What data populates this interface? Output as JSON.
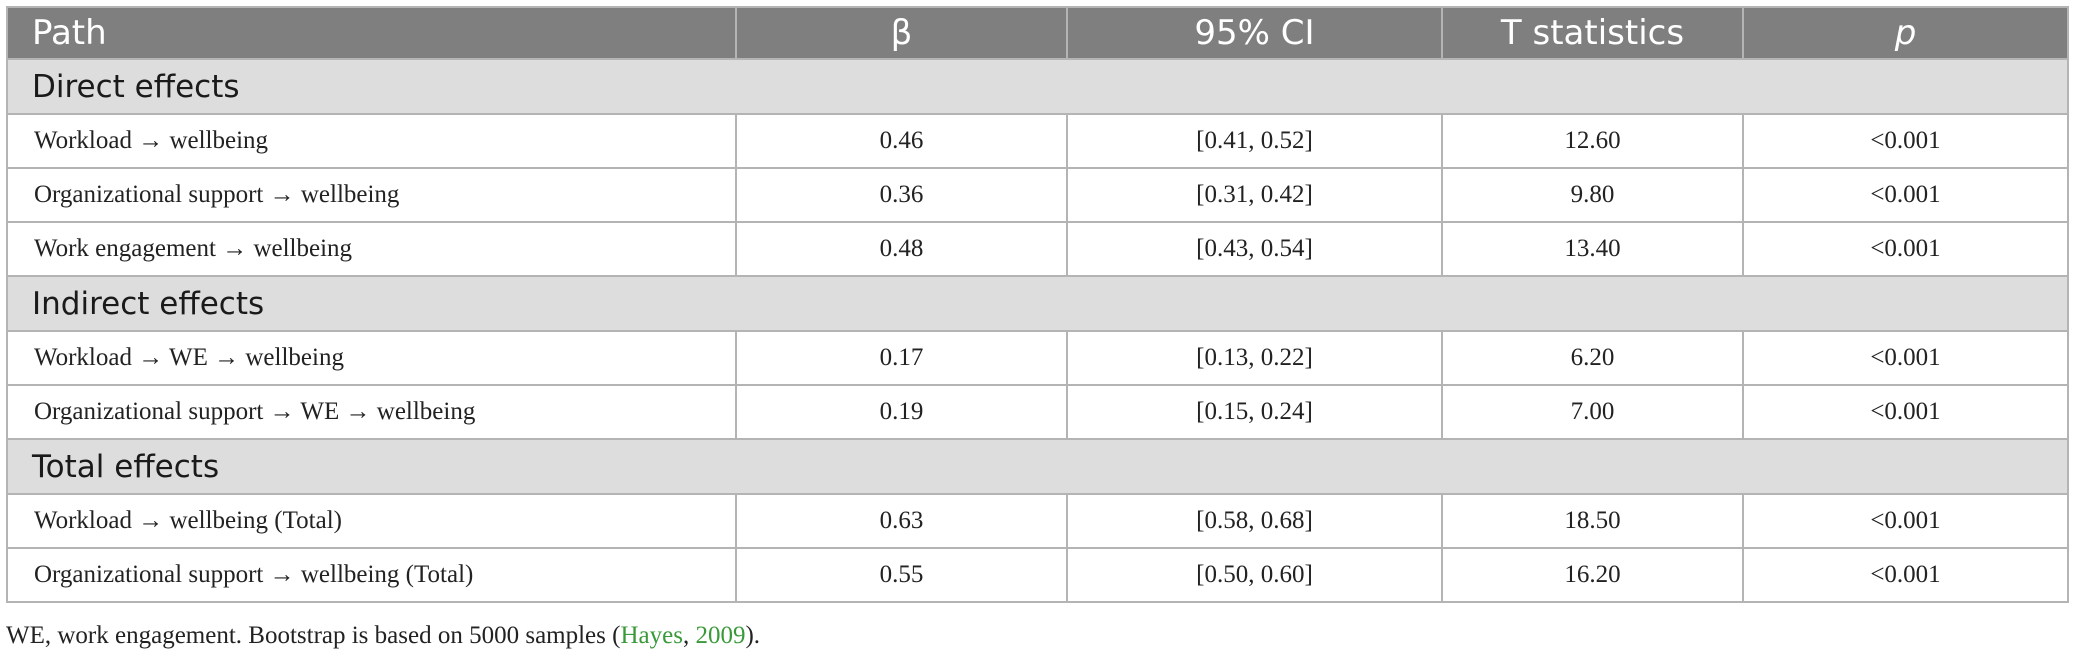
{
  "table": {
    "headers": {
      "path": "Path",
      "beta": "β",
      "ci": "95% CI",
      "t": "T statistics",
      "p": "p"
    },
    "sections": [
      {
        "title": "Direct effects",
        "rows": [
          {
            "path": "Workload → wellbeing",
            "beta": "0.46",
            "ci": "[0.41, 0.52]",
            "t": "12.60",
            "p": "<0.001"
          },
          {
            "path": "Organizational support → wellbeing",
            "beta": "0.36",
            "ci": "[0.31, 0.42]",
            "t": "9.80",
            "p": "<0.001"
          },
          {
            "path": "Work engagement → wellbeing",
            "beta": "0.48",
            "ci": "[0.43, 0.54]",
            "t": "13.40",
            "p": "<0.001"
          }
        ]
      },
      {
        "title": "Indirect effects",
        "rows": [
          {
            "path": "Workload → WE → wellbeing",
            "beta": "0.17",
            "ci": "[0.13, 0.22]",
            "t": "6.20",
            "p": "<0.001"
          },
          {
            "path": "Organizational support → WE → wellbeing",
            "beta": "0.19",
            "ci": "[0.15, 0.24]",
            "t": "7.00",
            "p": "<0.001"
          }
        ]
      },
      {
        "title": "Total effects",
        "rows": [
          {
            "path": "Workload → wellbeing (Total)",
            "beta": "0.63",
            "ci": "[0.58, 0.68]",
            "t": "18.50",
            "p": "<0.001"
          },
          {
            "path": "Organizational support → wellbeing (Total)",
            "beta": "0.55",
            "ci": "[0.50, 0.60]",
            "t": "16.20",
            "p": "<0.001"
          }
        ]
      }
    ]
  },
  "footnote": {
    "text_before": "WE, work engagement. Bootstrap is based on 5000 samples (",
    "cite_author": "Hayes",
    "cite_sep": ", ",
    "cite_year": "2009",
    "text_after": ")."
  },
  "colors": {
    "header_bg": "#7f7f7f",
    "section_bg": "#dddddd",
    "border": "#b4b4b4",
    "citation": "#3a9a3a"
  }
}
